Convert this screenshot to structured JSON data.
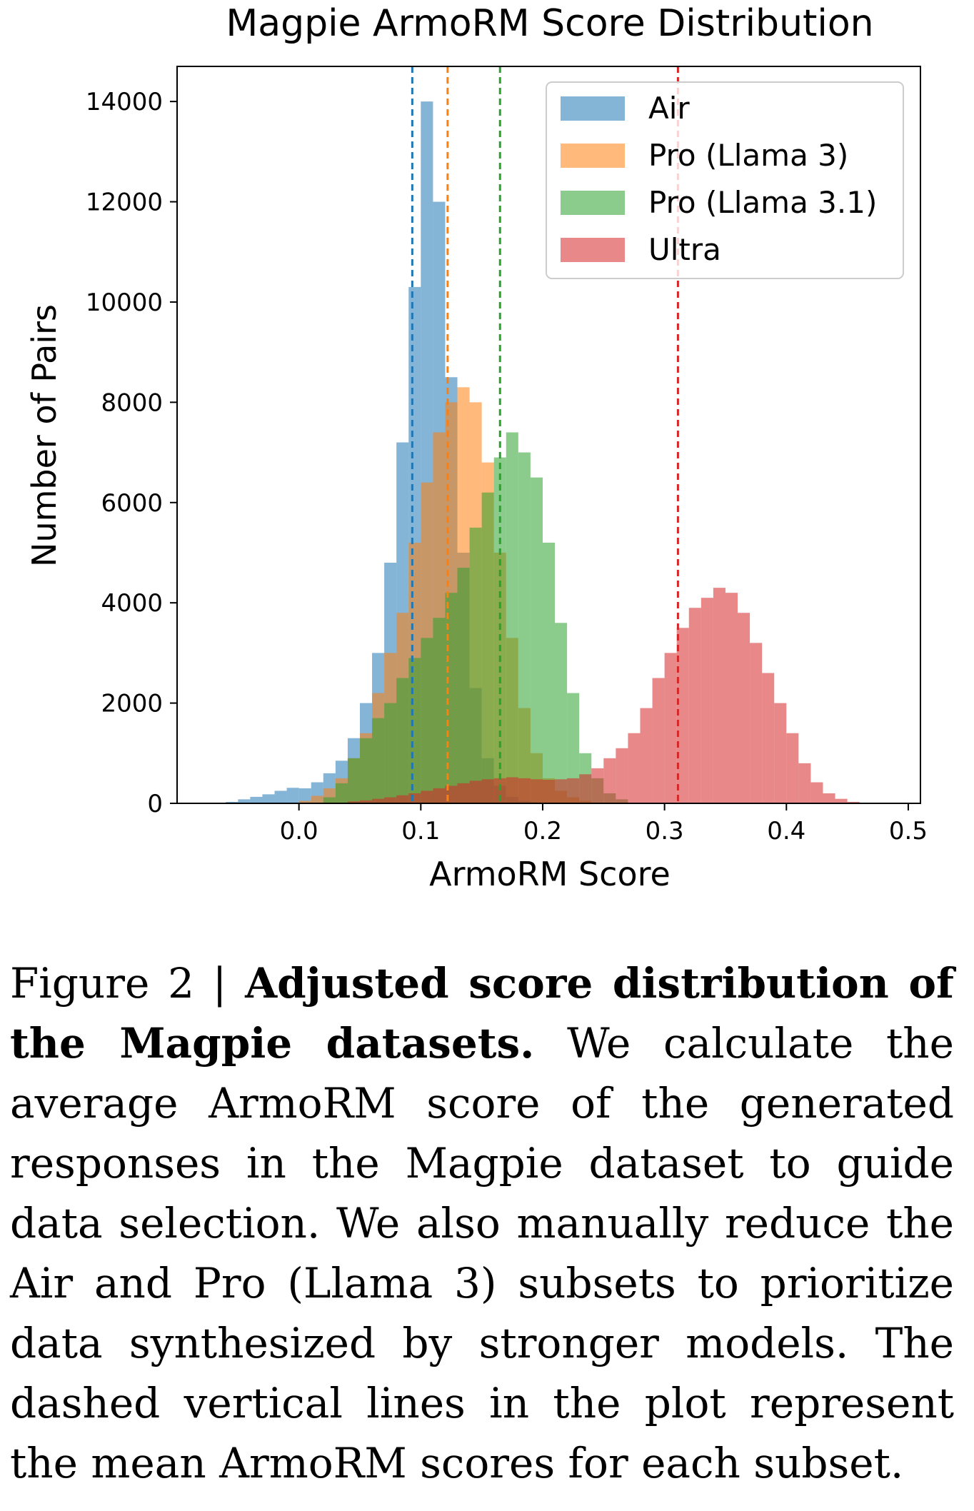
{
  "chart_data": {
    "type": "histogram",
    "title": "Magpie ArmoRM Score Distribution",
    "xlabel": "ArmoRM Score",
    "ylabel": "Number of Pairs",
    "xlim": [
      -0.1,
      0.51
    ],
    "ylim": [
      0,
      14700
    ],
    "bin_width": 0.01,
    "x_ticks": [
      {
        "value": 0.0,
        "label": "0.0"
      },
      {
        "value": 0.1,
        "label": "0.1"
      },
      {
        "value": 0.2,
        "label": "0.2"
      },
      {
        "value": 0.3,
        "label": "0.3"
      },
      {
        "value": 0.4,
        "label": "0.4"
      },
      {
        "value": 0.5,
        "label": "0.5"
      }
    ],
    "y_ticks": [
      {
        "value": 0,
        "label": "0"
      },
      {
        "value": 2000,
        "label": "2000"
      },
      {
        "value": 4000,
        "label": "4000"
      },
      {
        "value": 6000,
        "label": "6000"
      },
      {
        "value": 8000,
        "label": "8000"
      },
      {
        "value": 10000,
        "label": "10000"
      },
      {
        "value": 12000,
        "label": "12000"
      },
      {
        "value": 14000,
        "label": "14000"
      }
    ],
    "grid": false,
    "legend": {
      "position": "top-right"
    },
    "series": [
      {
        "name": "Air",
        "color": "#1f77b4",
        "mean": 0.093,
        "bin_starts": [
          -0.06,
          -0.05,
          -0.04,
          -0.03,
          -0.02,
          -0.01,
          0.0,
          0.01,
          0.02,
          0.03,
          0.04,
          0.05,
          0.06,
          0.07,
          0.08,
          0.09,
          0.1,
          0.11,
          0.12,
          0.13,
          0.14,
          0.15,
          0.16,
          0.17,
          0.18,
          0.19,
          0.2
        ],
        "values": [
          30,
          80,
          130,
          180,
          250,
          310,
          300,
          420,
          600,
          850,
          1300,
          2000,
          3000,
          4800,
          7200,
          10300,
          14000,
          12000,
          8500,
          5000,
          2300,
          900,
          350,
          130,
          50,
          20,
          10
        ]
      },
      {
        "name": "Pro (Llama 3)",
        "color": "#ff7f0e",
        "mean": 0.122,
        "bin_starts": [
          0.0,
          0.01,
          0.02,
          0.03,
          0.04,
          0.05,
          0.06,
          0.07,
          0.08,
          0.09,
          0.1,
          0.11,
          0.12,
          0.13,
          0.14,
          0.15,
          0.16,
          0.17,
          0.18,
          0.19,
          0.2,
          0.21,
          0.22,
          0.23
        ],
        "values": [
          50,
          150,
          300,
          500,
          900,
          1400,
          2200,
          3000,
          3800,
          5200,
          6400,
          7400,
          8000,
          8300,
          8000,
          6800,
          5000,
          3300,
          1900,
          1000,
          500,
          250,
          120,
          50
        ]
      },
      {
        "name": "Pro (Llama 3.1)",
        "color": "#2ca02c",
        "mean": 0.165,
        "bin_starts": [
          0.02,
          0.03,
          0.04,
          0.05,
          0.06,
          0.07,
          0.08,
          0.09,
          0.1,
          0.11,
          0.12,
          0.13,
          0.14,
          0.15,
          0.16,
          0.17,
          0.18,
          0.19,
          0.2,
          0.21,
          0.22,
          0.23,
          0.24,
          0.25,
          0.26
        ],
        "values": [
          120,
          400,
          900,
          1300,
          1700,
          2000,
          2500,
          2900,
          3300,
          3700,
          4200,
          4700,
          5500,
          6200,
          6900,
          7400,
          7000,
          6500,
          5200,
          3600,
          2200,
          1000,
          500,
          200,
          80
        ]
      },
      {
        "name": "Ultra",
        "color": "#d62728",
        "mean": 0.311,
        "bin_starts": [
          0.04,
          0.05,
          0.06,
          0.07,
          0.08,
          0.09,
          0.1,
          0.11,
          0.12,
          0.13,
          0.14,
          0.15,
          0.16,
          0.17,
          0.18,
          0.19,
          0.2,
          0.21,
          0.22,
          0.23,
          0.24,
          0.25,
          0.26,
          0.27,
          0.28,
          0.29,
          0.3,
          0.31,
          0.32,
          0.33,
          0.34,
          0.35,
          0.36,
          0.37,
          0.38,
          0.39,
          0.4,
          0.41,
          0.42,
          0.43,
          0.44,
          0.45
        ],
        "values": [
          40,
          60,
          90,
          120,
          160,
          200,
          250,
          300,
          350,
          400,
          450,
          480,
          500,
          520,
          500,
          480,
          470,
          480,
          500,
          580,
          700,
          900,
          1100,
          1400,
          1900,
          2500,
          3000,
          3500,
          3900,
          4100,
          4300,
          4200,
          3800,
          3200,
          2600,
          2000,
          1400,
          800,
          420,
          200,
          90,
          30
        ]
      }
    ]
  },
  "caption": {
    "label": "Figure 2 | ",
    "title": "Adjusted score distribution of the Magpie datasets.",
    "text": " We calculate the average ArmoRM score of the generated responses in the Magpie dataset to guide data selec­tion. We also manually reduce the Air and Pro (Llama 3) subsets to prioritize data syn­thesized by stronger models. The dashed vertical lines in the plot represent the mean ArmoRM scores for each subset."
  }
}
